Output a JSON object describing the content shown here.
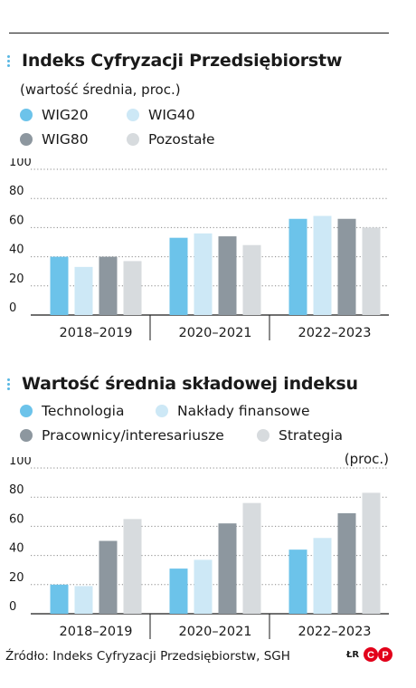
{
  "header": {
    "title": "Indeks Cyfryzacji Przedsiębiorstw",
    "subtitle": "(wartość średnia, proc.)"
  },
  "section2": {
    "title": "Wartość średnia składowej indeksu",
    "unit": "(proc.)"
  },
  "footer": {
    "source": "Źródło: Indeks Cyfryzacji Przedsiębiorstw, SGH",
    "logo_text": "ŁR",
    "logo_mark": "CP"
  },
  "colors": {
    "c1": "#6cc3ea",
    "c2": "#cde8f6",
    "c3": "#8d979f",
    "c4": "#d7dbde",
    "accent": "#58b7e3"
  },
  "chart_data": [
    {
      "type": "bar",
      "categories": [
        "2018–2019",
        "2020–2021",
        "2022–2023"
      ],
      "series": [
        {
          "name": "WIG20",
          "values": [
            40,
            53,
            66
          ]
        },
        {
          "name": "WIG40",
          "values": [
            33,
            56,
            68
          ]
        },
        {
          "name": "WIG80",
          "values": [
            40,
            54,
            66
          ]
        },
        {
          "name": "Pozostałe",
          "values": [
            37,
            48,
            60
          ]
        }
      ],
      "yticks": [
        "0",
        "20",
        "40",
        "60",
        "80",
        "100"
      ],
      "ylim": [
        0,
        100
      ],
      "grid": true,
      "legend": "top"
    },
    {
      "type": "bar",
      "categories": [
        "2018–2019",
        "2020–2021",
        "2022–2023"
      ],
      "series": [
        {
          "name": "Technologia",
          "values": [
            20,
            31,
            44
          ]
        },
        {
          "name": "Nakłady finansowe",
          "values": [
            19,
            37,
            52
          ]
        },
        {
          "name": "Pracownicy/interesariusze",
          "values": [
            50,
            62,
            69
          ]
        },
        {
          "name": "Strategia",
          "values": [
            65,
            76,
            83
          ]
        }
      ],
      "yticks": [
        "0",
        "20",
        "40",
        "60",
        "80",
        "100"
      ],
      "ylim": [
        0,
        100
      ],
      "grid": true,
      "legend": "top"
    }
  ]
}
